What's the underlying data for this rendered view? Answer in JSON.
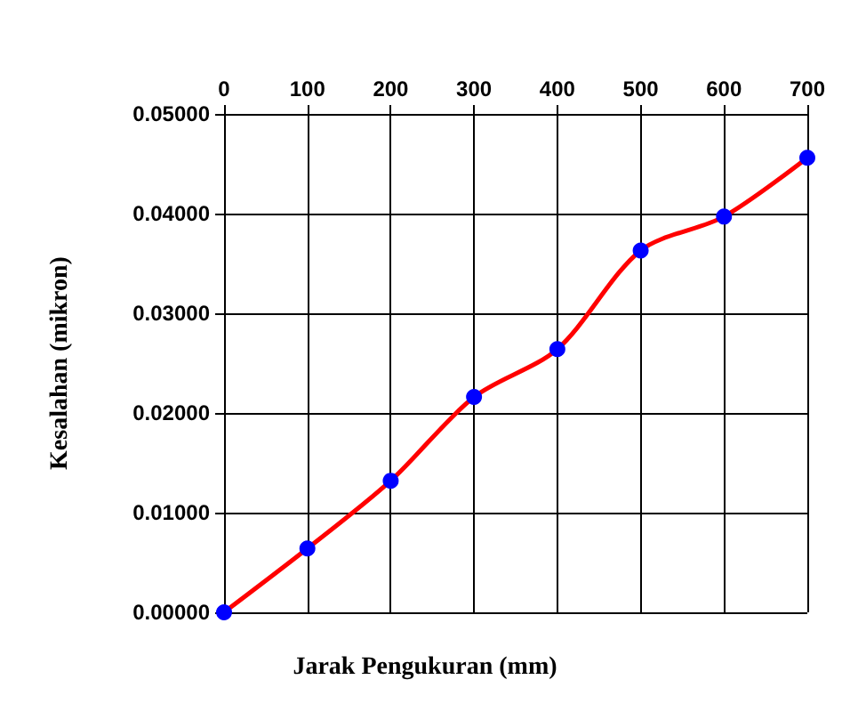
{
  "chart_data": {
    "type": "line",
    "xlabel": "Jarak Pengukuran (mm)",
    "ylabel": "Kesalahan (mikron)",
    "x": [
      0,
      100,
      200,
      300,
      400,
      500,
      600,
      700
    ],
    "series": [
      {
        "color": "#ff0000",
        "colors": [
          "#0000ff",
          "#0000ff",
          "#0000ff",
          "#0000ff",
          "#0000ff",
          "#0000ff",
          "#0000ff",
          "#0000ff"
        ],
        "values": [
          0,
          0.0064,
          0.0132,
          0.0216,
          0.0264,
          0.0363,
          0.0397,
          0.0456
        ]
      }
    ],
    "xlim": [
      0,
      700
    ],
    "xticks": [
      0,
      100,
      200,
      300,
      400,
      500,
      600,
      700
    ],
    "ylim": [
      0,
      0.05
    ],
    "yticks": [
      {
        "value": 0,
        "label": "0.00000"
      },
      {
        "value": 0.01,
        "label": "0.01000"
      },
      {
        "value": 0.02,
        "label": "0.02000"
      },
      {
        "value": 0.03,
        "label": "0.03000"
      },
      {
        "value": 0.04,
        "label": "0.04000"
      },
      {
        "value": 0.05,
        "label": "0.05000"
      }
    ],
    "grid": true,
    "marker": "circle"
  }
}
